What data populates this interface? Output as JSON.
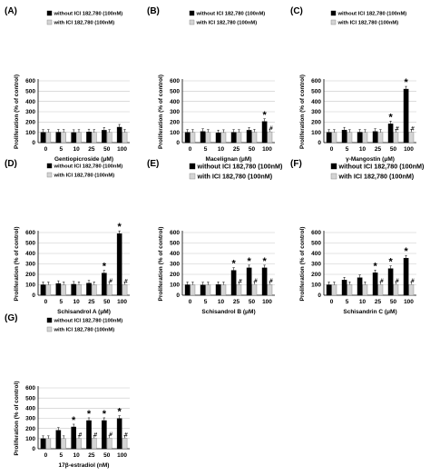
{
  "chart_data": [
    {
      "type": "bar",
      "panel_label": "(A)",
      "categories": [
        "0",
        "5",
        "10",
        "25",
        "50",
        "100"
      ],
      "series": [
        {
          "name": "without ICI 182,780 (100nM)",
          "values": [
            100,
            101,
            98,
            104,
            120,
            150
          ]
        },
        {
          "name": "with ICI 182,780 (100nM)",
          "values": [
            100,
            100,
            99,
            100,
            100,
            101
          ]
        }
      ],
      "ylabel": "Proliferation (% of control)",
      "xlabel": "Gentiopicroside (μM)",
      "yticks": [
        "0",
        "100",
        "200",
        "300",
        "400",
        "500",
        "600"
      ],
      "ylim": [
        0,
        600
      ],
      "grid": true,
      "legend": "top-left",
      "markers": [],
      "colors": [
        "#000000",
        "#d4d4d4"
      ]
    },
    {
      "type": "bar",
      "panel_label": "(B)",
      "categories": [
        "0",
        "5",
        "10",
        "25",
        "50",
        "100"
      ],
      "series": [
        {
          "name": "without ICI 182,780 (100nM)",
          "values": [
            100,
            108,
            95,
            100,
            120,
            205
          ]
        },
        {
          "name": "with ICI 182,780 (100nM)",
          "values": [
            100,
            100,
            98,
            99,
            102,
            105
          ]
        }
      ],
      "ylabel": "Proliferation (% of control)",
      "xlabel": "Macelignan (μM)",
      "yticks": [
        "0",
        "100",
        "200",
        "300",
        "400",
        "500",
        "600"
      ],
      "ylim": [
        0,
        600
      ],
      "grid": true,
      "legend": "top-left",
      "markers": [
        {
          "category": 5,
          "symbol": "*",
          "series": 0
        },
        {
          "category": 5,
          "symbol": "#",
          "series": 1
        }
      ],
      "colors": [
        "#000000",
        "#d4d4d4"
      ]
    },
    {
      "type": "bar",
      "panel_label": "(C)",
      "categories": [
        "0",
        "5",
        "10",
        "25",
        "50",
        "100"
      ],
      "series": [
        {
          "name": "without ICI 182,780 (100nM)",
          "values": [
            100,
            122,
            101,
            108,
            182,
            520
          ]
        },
        {
          "name": "with ICI 182,780 (100nM)",
          "values": [
            100,
            100,
            99,
            100,
            101,
            102
          ]
        }
      ],
      "ylabel": "Proliferation (% of control)",
      "xlabel": "γ-Mangostin (μM)",
      "yticks": [
        "0",
        "100",
        "200",
        "300",
        "400",
        "500",
        "600"
      ],
      "ylim": [
        0,
        600
      ],
      "grid": true,
      "legend": "top-left",
      "markers": [
        {
          "category": 4,
          "symbol": "*",
          "series": 0
        },
        {
          "category": 4,
          "symbol": "#",
          "series": 1
        },
        {
          "category": 5,
          "symbol": "*",
          "series": 0
        },
        {
          "category": 5,
          "symbol": "#",
          "series": 1
        }
      ],
      "colors": [
        "#000000",
        "#d4d4d4"
      ]
    },
    {
      "type": "bar",
      "panel_label": "(D)",
      "categories": [
        "0",
        "5",
        "10",
        "25",
        "50",
        "100"
      ],
      "series": [
        {
          "name": "without ICI 182,780 (100nM)",
          "values": [
            100,
            112,
            105,
            115,
            212,
            590
          ]
        },
        {
          "name": "with ICI 182,780 (100nM)",
          "values": [
            100,
            100,
            102,
            101,
            103,
            102
          ]
        }
      ],
      "ylabel": "Proliferation (% of control)",
      "xlabel": "Schisandrol A (μM)",
      "yticks": [
        "0",
        "100",
        "200",
        "300",
        "400",
        "500",
        "600"
      ],
      "ylim": [
        0,
        600
      ],
      "grid": true,
      "legend": "top-left",
      "markers": [
        {
          "category": 4,
          "symbol": "*",
          "series": 0
        },
        {
          "category": 4,
          "symbol": "#",
          "series": 1
        },
        {
          "category": 5,
          "symbol": "*",
          "series": 0
        },
        {
          "category": 5,
          "symbol": "#",
          "series": 1
        }
      ],
      "colors": [
        "#000000",
        "#d4d4d4"
      ]
    },
    {
      "type": "bar",
      "panel_label": "(E)",
      "categories": [
        "0",
        "5",
        "10",
        "25",
        "50",
        "100"
      ],
      "series": [
        {
          "name": "without ICI 182,780 (100nM)",
          "values": [
            100,
            98,
            102,
            238,
            262,
            262
          ]
        },
        {
          "name": "with ICI 182,780 (100nM)",
          "values": [
            100,
            99,
            100,
            102,
            104,
            103
          ]
        }
      ],
      "ylabel": "Proliferation (% of control)",
      "xlabel": "Schisandrol B (μM)",
      "yticks": [
        "0",
        "100",
        "200",
        "300",
        "400",
        "500",
        "600"
      ],
      "ylim": [
        0,
        600
      ],
      "grid": true,
      "legend": "top-left",
      "markers": [
        {
          "category": 3,
          "symbol": "*",
          "series": 0
        },
        {
          "category": 3,
          "symbol": "#",
          "series": 1
        },
        {
          "category": 4,
          "symbol": "*",
          "series": 0
        },
        {
          "category": 4,
          "symbol": "#",
          "series": 1
        },
        {
          "category": 5,
          "symbol": "*",
          "series": 0
        },
        {
          "category": 5,
          "symbol": "#",
          "series": 1
        }
      ],
      "colors": [
        "#000000",
        "#d4d4d4"
      ]
    },
    {
      "type": "bar",
      "panel_label": "(F)",
      "categories": [
        "0",
        "5",
        "10",
        "25",
        "50",
        "100"
      ],
      "series": [
        {
          "name": "without ICI 182,780 (100nM)",
          "values": [
            100,
            145,
            168,
            215,
            255,
            355
          ]
        },
        {
          "name": "with ICI 182,780 (100nM)",
          "values": [
            100,
            102,
            101,
            103,
            104,
            103
          ]
        }
      ],
      "ylabel": "Proliferation (% of control)",
      "xlabel": "Schisandrin C (μM)",
      "yticks": [
        "0",
        "100",
        "200",
        "300",
        "400",
        "500",
        "600"
      ],
      "ylim": [
        0,
        600
      ],
      "grid": true,
      "legend": "top-left",
      "markers": [
        {
          "category": 3,
          "symbol": "*",
          "series": 0
        },
        {
          "category": 3,
          "symbol": "#",
          "series": 1
        },
        {
          "category": 4,
          "symbol": "*",
          "series": 0
        },
        {
          "category": 4,
          "symbol": "#",
          "series": 1
        },
        {
          "category": 5,
          "symbol": "*",
          "series": 0
        },
        {
          "category": 5,
          "symbol": "#",
          "series": 1
        }
      ],
      "colors": [
        "#000000",
        "#d4d4d4"
      ]
    },
    {
      "type": "bar",
      "panel_label": "(G)",
      "categories": [
        "0",
        "5",
        "10",
        "25",
        "50",
        "100"
      ],
      "series": [
        {
          "name": "without ICI 182,780 (100nM)",
          "values": [
            100,
            182,
            215,
            278,
            278,
            298
          ]
        },
        {
          "name": "with ICI 182,780 (100nM)",
          "values": [
            100,
            100,
            103,
            104,
            106,
            104
          ]
        }
      ],
      "ylabel": "Proliferation (% of control)",
      "xlabel": "17β-estradiol (nM)",
      "yticks": [
        "0",
        "100",
        "200",
        "300",
        "400",
        "500",
        "600"
      ],
      "ylim": [
        0,
        600
      ],
      "grid": true,
      "legend": "top-left",
      "markers": [
        {
          "category": 2,
          "symbol": "*",
          "series": 0
        },
        {
          "category": 2,
          "symbol": "#",
          "series": 1
        },
        {
          "category": 3,
          "symbol": "*",
          "series": 0
        },
        {
          "category": 3,
          "symbol": "#",
          "series": 1
        },
        {
          "category": 4,
          "symbol": "*",
          "series": 0
        },
        {
          "category": 4,
          "symbol": "#",
          "series": 1
        },
        {
          "category": 5,
          "symbol": "*",
          "series": 0
        },
        {
          "category": 5,
          "symbol": "#",
          "series": 1
        }
      ],
      "colors": [
        "#000000",
        "#d4d4d4"
      ]
    }
  ]
}
